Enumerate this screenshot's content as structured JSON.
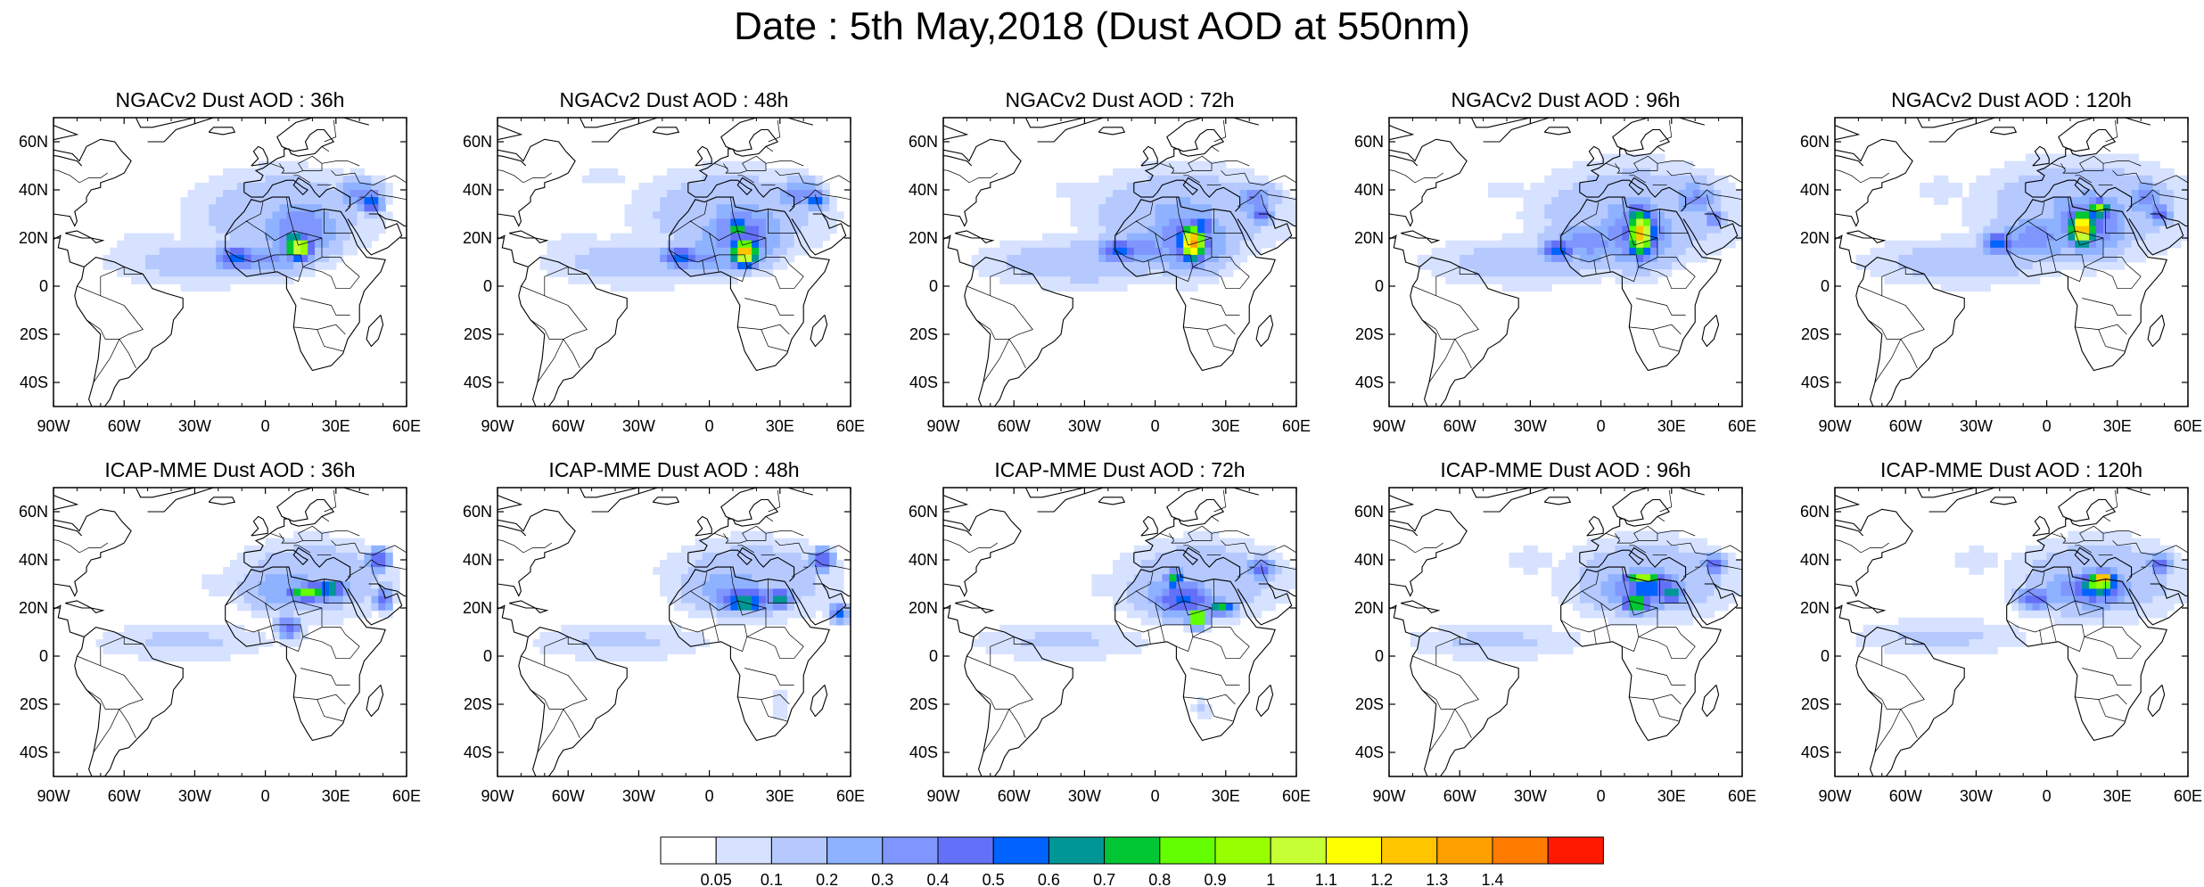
{
  "title": "Date : 5th May,2018 (Dust AOD at 550nm)",
  "panels": [
    {
      "title": "NGACv2 Dust AOD : 36h",
      "model": "NGACv2",
      "lead": "36h"
    },
    {
      "title": "NGACv2 Dust AOD : 48h",
      "model": "NGACv2",
      "lead": "48h"
    },
    {
      "title": "NGACv2 Dust AOD : 72h",
      "model": "NGACv2",
      "lead": "72h"
    },
    {
      "title": "NGACv2 Dust AOD : 96h",
      "model": "NGACv2",
      "lead": "96h"
    },
    {
      "title": "NGACv2 Dust AOD : 120h",
      "model": "NGACv2",
      "lead": "120h"
    },
    {
      "title": "ICAP-MME Dust AOD : 36h",
      "model": "ICAP-MME",
      "lead": "36h"
    },
    {
      "title": "ICAP-MME Dust AOD : 48h",
      "model": "ICAP-MME",
      "lead": "48h"
    },
    {
      "title": "ICAP-MME Dust AOD : 72h",
      "model": "ICAP-MME",
      "lead": "72h"
    },
    {
      "title": "ICAP-MME Dust AOD : 96h",
      "model": "ICAP-MME",
      "lead": "96h"
    },
    {
      "title": "ICAP-MME Dust AOD : 120h",
      "model": "ICAP-MME",
      "lead": "120h"
    }
  ],
  "map_extent": {
    "lon": [
      -90,
      60
    ],
    "lat": [
      -50,
      70
    ]
  },
  "x_ticks": [
    {
      "lon": -90,
      "label": "90W"
    },
    {
      "lon": -60,
      "label": "60W"
    },
    {
      "lon": -30,
      "label": "30W"
    },
    {
      "lon": 0,
      "label": "0"
    },
    {
      "lon": 30,
      "label": "30E"
    },
    {
      "lon": 60,
      "label": "60E"
    }
  ],
  "y_ticks": [
    {
      "lat": 60,
      "label": "60N"
    },
    {
      "lat": 40,
      "label": "40N"
    },
    {
      "lat": 20,
      "label": "20N"
    },
    {
      "lat": 0,
      "label": "0"
    },
    {
      "lat": -20,
      "label": "20S"
    },
    {
      "lat": -40,
      "label": "40S"
    }
  ],
  "colorbar": {
    "colors": [
      "#ffffff",
      "#d6e2ff",
      "#b5c9ff",
      "#8eb2ff",
      "#7f96ff",
      "#6370f8",
      "#0063ff",
      "#009696",
      "#00c633",
      "#63ff00",
      "#96ff00",
      "#c6ff33",
      "#ffff00",
      "#ffc600",
      "#ffa000",
      "#ff7c00",
      "#ff1900"
    ],
    "labels": [
      "0.05",
      "0.1",
      "0.2",
      "0.3",
      "0.4",
      "0.5",
      "0.6",
      "0.7",
      "0.8",
      "0.9",
      "1",
      "1.1",
      "1.2",
      "1.3",
      "1.4"
    ]
  }
}
